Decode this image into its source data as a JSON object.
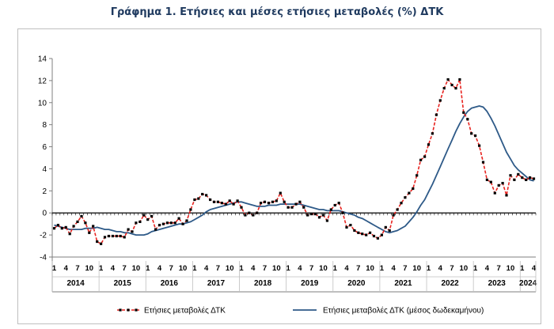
{
  "chart_data": {
    "type": "line",
    "title": "Γράφημα 1. Ετήσιες και μέσες ετήσιες μεταβολές (%) ΔΤΚ",
    "xlabel": "",
    "ylabel": "",
    "ylim": [
      -4,
      14
    ],
    "yticks": [
      -4,
      -2,
      0,
      2,
      4,
      6,
      8,
      10,
      12,
      14
    ],
    "grid": false,
    "legend": "bottom",
    "month_tick_labels": [
      "1",
      "4",
      "7",
      "10"
    ],
    "years": [
      "2014",
      "2015",
      "2016",
      "2017",
      "2018",
      "2019",
      "2020",
      "2021",
      "2022",
      "2023",
      "2024"
    ],
    "x_start": "2014-01",
    "colors": {
      "annual": "#e8231f",
      "markers": "#000000",
      "average": "#2e5a88",
      "zero_line": "#000000"
    },
    "series": [
      {
        "name": "Ετήσιες μεταβολές ΔΤΚ",
        "style": "dashed-with-markers",
        "values": [
          -1.4,
          -1.1,
          -1.4,
          -1.3,
          -1.9,
          -1.2,
          -0.8,
          -0.3,
          -0.9,
          -1.8,
          -1.2,
          -2.6,
          -2.8,
          -2.2,
          -2.1,
          -2.1,
          -2.1,
          -2.1,
          -2.2,
          -1.5,
          -1.7,
          -0.9,
          -0.8,
          -0.2,
          -0.6,
          -0.3,
          -1.5,
          -1.1,
          -1.0,
          -0.9,
          -0.9,
          -0.9,
          -0.5,
          -1.0,
          -0.7,
          0.3,
          1.2,
          1.3,
          1.7,
          1.6,
          1.2,
          1.0,
          1.0,
          0.9,
          0.8,
          1.1,
          0.8,
          1.1,
          0.5,
          -0.2,
          0.0,
          -0.2,
          0.0,
          0.9,
          1.0,
          0.9,
          1.0,
          1.1,
          1.8,
          1.0,
          0.5,
          0.5,
          0.8,
          1.0,
          0.5,
          -0.2,
          -0.1,
          -0.1,
          -0.4,
          -0.2,
          -0.7,
          0.3,
          0.7,
          0.9,
          0.0,
          -1.3,
          -1.1,
          -1.6,
          -1.8,
          -1.9,
          -2.0,
          -1.8,
          -2.1,
          -2.3,
          -2.0,
          -1.3,
          -1.6,
          -0.2,
          0.3,
          0.9,
          1.4,
          1.8,
          2.2,
          3.4,
          4.8,
          5.1,
          6.2,
          7.2,
          8.9,
          10.2,
          11.3,
          12.1,
          11.6,
          11.3,
          12.1,
          9.1,
          8.5,
          7.2,
          7.0,
          6.1,
          4.6,
          3.0,
          2.8,
          1.8,
          2.5,
          2.7,
          1.6,
          3.4,
          3.0,
          3.5,
          3.2,
          3.0,
          3.2,
          3.1
        ]
      },
      {
        "name": "Ετήσιες μεταβολές ΔΤΚ (μέσος δωδεκαμήνου)",
        "style": "solid",
        "values": [
          -1.1,
          -1.2,
          -1.3,
          -1.4,
          -1.5,
          -1.5,
          -1.5,
          -1.5,
          -1.4,
          -1.4,
          -1.4,
          -1.3,
          -1.4,
          -1.5,
          -1.5,
          -1.6,
          -1.7,
          -1.7,
          -1.8,
          -1.8,
          -1.9,
          -2.0,
          -2.0,
          -2.0,
          -1.9,
          -1.7,
          -1.6,
          -1.5,
          -1.4,
          -1.3,
          -1.2,
          -1.1,
          -1.0,
          -1.0,
          -0.9,
          -0.8,
          -0.6,
          -0.4,
          -0.2,
          0.1,
          0.3,
          0.4,
          0.5,
          0.6,
          0.7,
          0.8,
          0.9,
          1.0,
          1.0,
          0.9,
          0.8,
          0.7,
          0.6,
          0.6,
          0.6,
          0.7,
          0.7,
          0.7,
          0.8,
          0.8,
          0.8,
          0.8,
          0.8,
          0.8,
          0.7,
          0.6,
          0.5,
          0.4,
          0.3,
          0.3,
          0.2,
          0.2,
          0.2,
          0.2,
          0.1,
          0.0,
          -0.1,
          -0.2,
          -0.4,
          -0.5,
          -0.7,
          -0.9,
          -1.1,
          -1.3,
          -1.5,
          -1.7,
          -1.8,
          -1.7,
          -1.6,
          -1.4,
          -1.2,
          -0.8,
          -0.4,
          0.1,
          0.7,
          1.2,
          1.9,
          2.6,
          3.4,
          4.2,
          5.0,
          5.8,
          6.6,
          7.4,
          8.1,
          8.7,
          9.2,
          9.5,
          9.6,
          9.7,
          9.6,
          9.2,
          8.6,
          7.9,
          7.1,
          6.3,
          5.5,
          4.9,
          4.3,
          3.9,
          3.6,
          3.3,
          3.0,
          2.9
        ]
      }
    ]
  }
}
